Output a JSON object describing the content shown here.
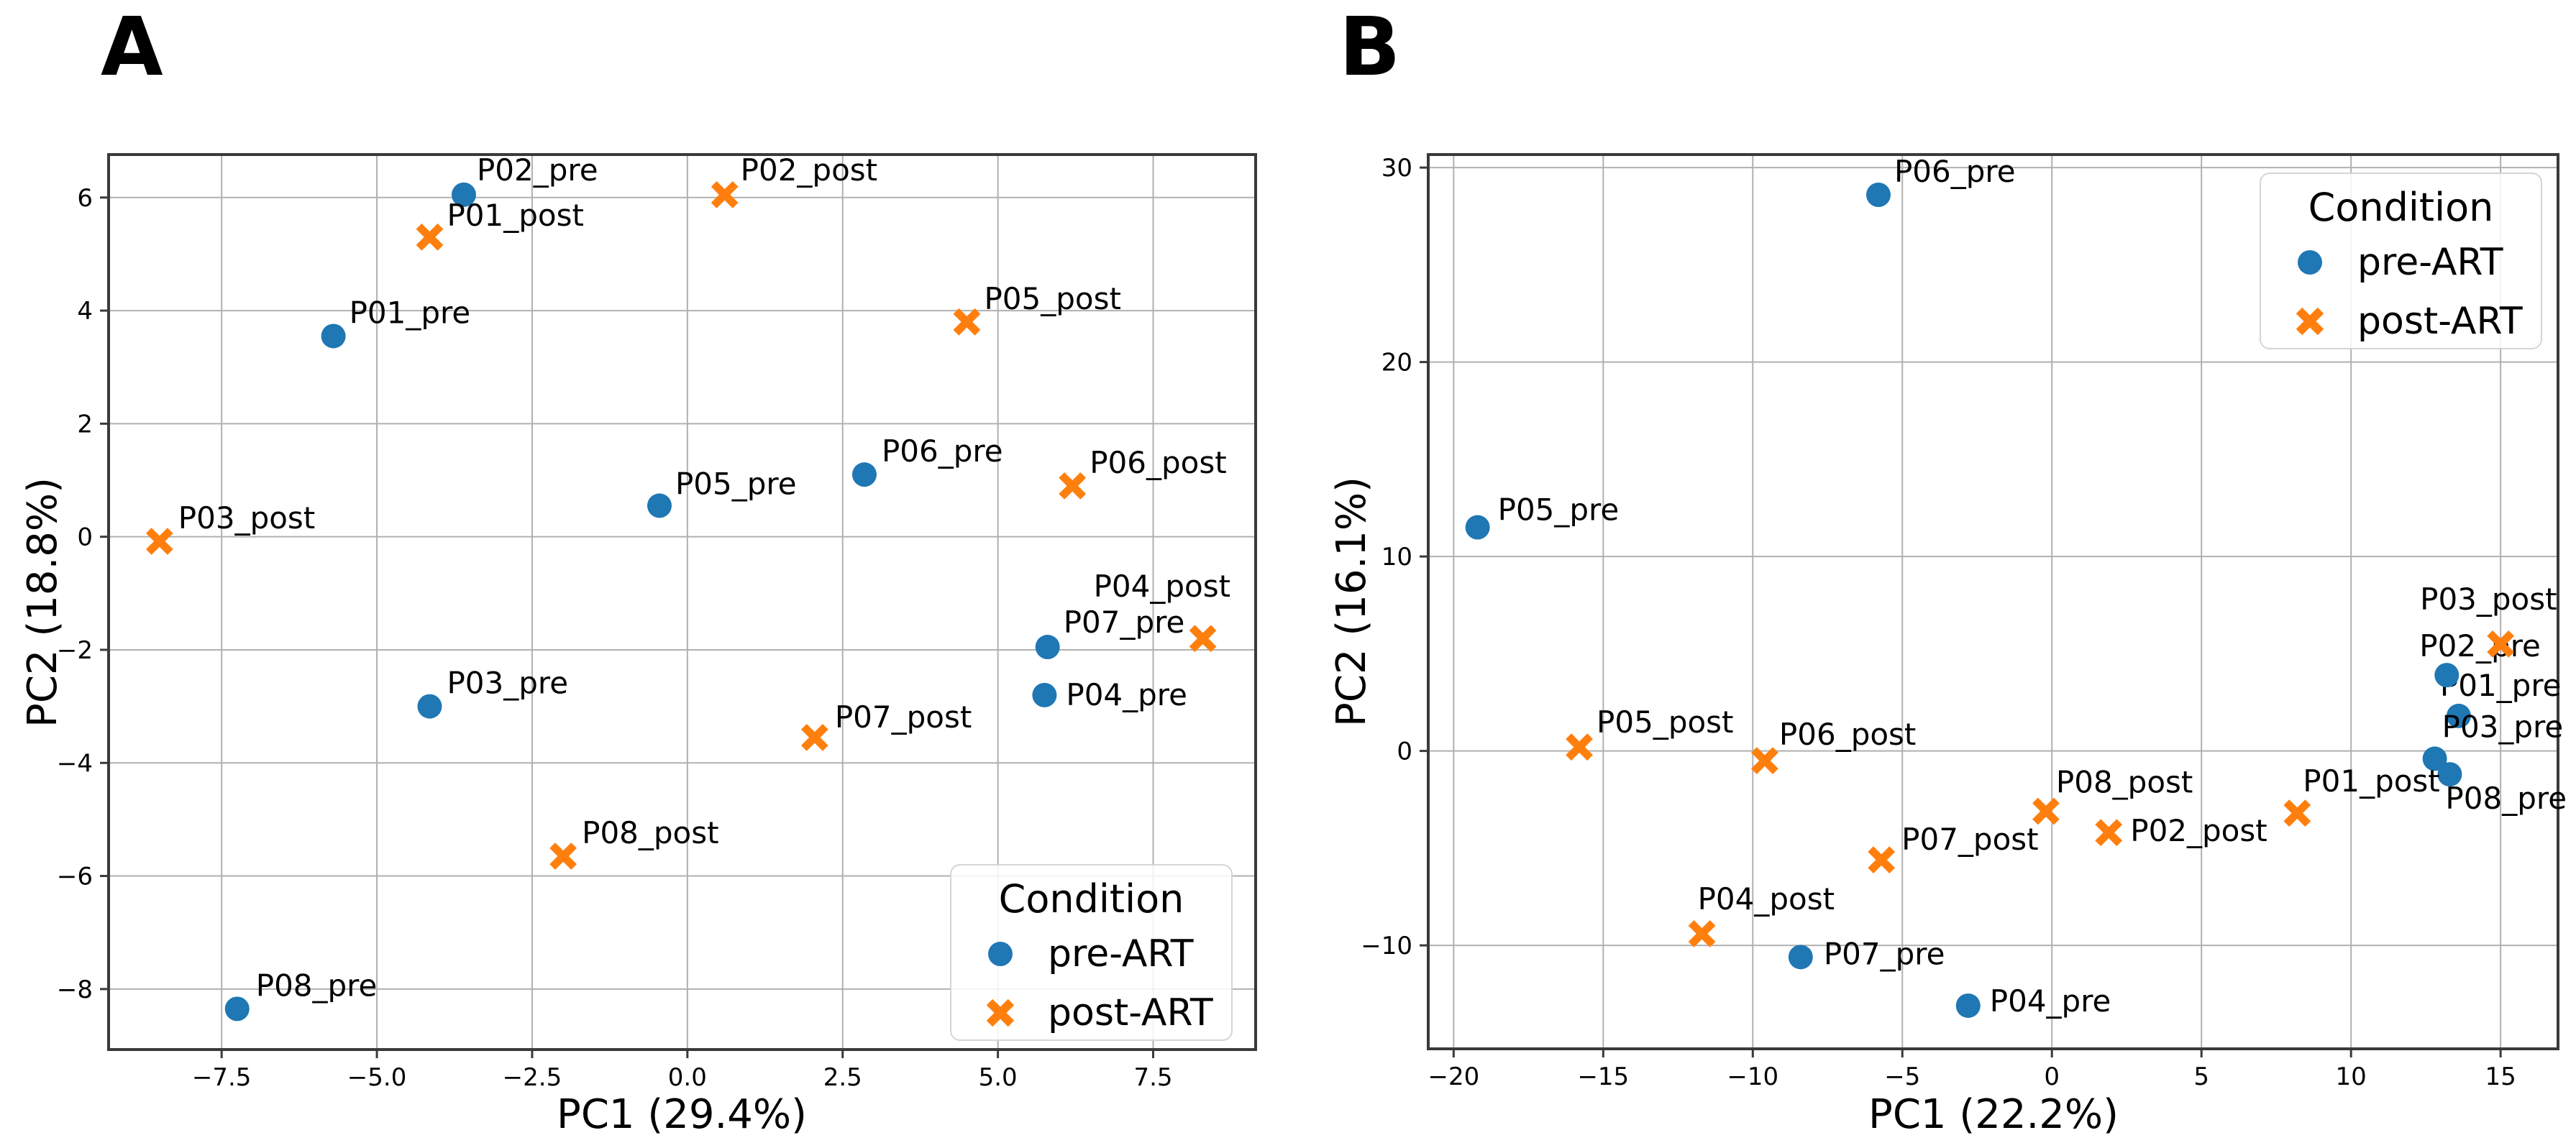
{
  "chart_data": [
    {
      "type": "scatter",
      "panel_letter": "A",
      "xlabel": "PC1 (29.4%)",
      "ylabel": "PC2 (18.8%)",
      "xlim": [
        -9.32,
        9.15
      ],
      "ylim": [
        -9.07,
        6.76
      ],
      "xticks": {
        "values": [
          -7.5,
          -5.0,
          -2.5,
          0.0,
          2.5,
          5.0,
          7.5
        ],
        "labels": [
          "−7.5",
          "−5.0",
          "−2.5",
          "0.0",
          "2.5",
          "5.0",
          "7.5"
        ]
      },
      "yticks": {
        "values": [
          6,
          4,
          2,
          0,
          -2,
          -4,
          -6,
          -8
        ],
        "labels": [
          "6",
          "4",
          "2",
          "0",
          "−2",
          "−4",
          "−6",
          "−8"
        ]
      },
      "grid": true,
      "legend": {
        "title": "Condition",
        "position": "lower right",
        "items": [
          {
            "label": "pre-ART",
            "marker": "circle",
            "color": "#1f77b4"
          },
          {
            "label": "post-ART",
            "marker": "x",
            "color": "#ff7f0e"
          }
        ]
      },
      "series": [
        {
          "name": "pre-ART",
          "marker": "circle",
          "color": "#1f77b4",
          "points": [
            {
              "label": "P01_pre",
              "x": -5.7,
              "y": 3.55,
              "label_dx": 22,
              "label_dy": -18
            },
            {
              "label": "P02_pre",
              "x": -3.6,
              "y": 6.05,
              "label_dx": 18,
              "label_dy": -20
            },
            {
              "label": "P03_pre",
              "x": -4.15,
              "y": -3.0,
              "label_dx": 24,
              "label_dy": -18
            },
            {
              "label": "P04_pre",
              "x": 5.75,
              "y": -2.8,
              "label_dx": 30,
              "label_dy": 14
            },
            {
              "label": "P05_pre",
              "x": -0.45,
              "y": 0.55,
              "label_dx": 22,
              "label_dy": -16
            },
            {
              "label": "P06_pre",
              "x": 2.85,
              "y": 1.1,
              "label_dx": 24,
              "label_dy": -18
            },
            {
              "label": "P07_pre",
              "x": 5.8,
              "y": -1.95,
              "label_dx": 22,
              "label_dy": -20
            },
            {
              "label": "P08_pre",
              "x": -7.25,
              "y": -8.35,
              "label_dx": 26,
              "label_dy": -18
            }
          ]
        },
        {
          "name": "post-ART",
          "marker": "x",
          "color": "#ff7f0e",
          "points": [
            {
              "label": "P01_post",
              "x": -4.15,
              "y": 5.3,
              "label_dx": 24,
              "label_dy": -16
            },
            {
              "label": "P02_post",
              "x": 0.6,
              "y": 6.05,
              "label_dx": 22,
              "label_dy": -20
            },
            {
              "label": "P03_post",
              "x": -8.5,
              "y": -0.08,
              "label_dx": 26,
              "label_dy": -18
            },
            {
              "label": "P04_post",
              "x": 8.3,
              "y": -1.8,
              "label_dx": -152,
              "label_dy": -58
            },
            {
              "label": "P05_post",
              "x": 4.5,
              "y": 3.8,
              "label_dx": 24,
              "label_dy": -18
            },
            {
              "label": "P06_post",
              "x": 6.2,
              "y": 0.9,
              "label_dx": 24,
              "label_dy": -18
            },
            {
              "label": "P07_post",
              "x": 2.05,
              "y": -3.55,
              "label_dx": 28,
              "label_dy": -14
            },
            {
              "label": "P08_post",
              "x": -2.0,
              "y": -5.65,
              "label_dx": 26,
              "label_dy": -18
            }
          ]
        }
      ]
    },
    {
      "type": "scatter",
      "panel_letter": "B",
      "xlabel": "PC1 (22.2%)",
      "ylabel": "PC2 (16.1%)",
      "xlim": [
        -20.85,
        16.92
      ],
      "ylim": [
        -15.32,
        30.67
      ],
      "xticks": {
        "values": [
          -20,
          -15,
          -10,
          -5,
          0,
          5,
          10,
          15
        ],
        "labels": [
          "−20",
          "−15",
          "−10",
          "−5",
          "0",
          "5",
          "10",
          "15"
        ]
      },
      "yticks": {
        "values": [
          -10,
          0,
          10,
          20,
          30
        ],
        "labels": [
          "−10",
          "0",
          "10",
          "20",
          "30"
        ]
      },
      "grid": true,
      "legend": {
        "title": "Condition",
        "position": "upper right",
        "items": [
          {
            "label": "pre-ART",
            "marker": "circle",
            "color": "#1f77b4"
          },
          {
            "label": "post-ART",
            "marker": "x",
            "color": "#ff7f0e"
          }
        ]
      },
      "series": [
        {
          "name": "pre-ART",
          "marker": "circle",
          "color": "#1f77b4",
          "points": [
            {
              "label": "P01_pre",
              "x": 13.6,
              "y": 1.8,
              "label_dx": -26,
              "label_dy": -28
            },
            {
              "label": "P02_pre",
              "x": 13.2,
              "y": 3.9,
              "label_dx": -38,
              "label_dy": -26
            },
            {
              "label": "P03_pre",
              "x": 12.8,
              "y": -0.4,
              "label_dx": 10,
              "label_dy": -30
            },
            {
              "label": "P04_pre",
              "x": -2.8,
              "y": -13.1,
              "label_dx": 30,
              "label_dy": 8
            },
            {
              "label": "P05_pre",
              "x": -19.2,
              "y": 11.5,
              "label_dx": 28,
              "label_dy": -10
            },
            {
              "label": "P06_pre",
              "x": -5.8,
              "y": 28.6,
              "label_dx": 22,
              "label_dy": -18
            },
            {
              "label": "P07_pre",
              "x": -8.4,
              "y": -10.6,
              "label_dx": 32,
              "label_dy": 10
            },
            {
              "label": "P08_pre",
              "x": 13.3,
              "y": -1.2,
              "label_dx": -6,
              "label_dy": 48
            }
          ]
        },
        {
          "name": "post-ART",
          "marker": "x",
          "color": "#ff7f0e",
          "points": [
            {
              "label": "P01_post",
              "x": 8.2,
              "y": -3.2,
              "label_dx": 8,
              "label_dy": -30
            },
            {
              "label": "P02_post",
              "x": 1.9,
              "y": -4.2,
              "label_dx": 30,
              "label_dy": 12
            },
            {
              "label": "P03_post",
              "x": 15.0,
              "y": 5.5,
              "label_dx": -112,
              "label_dy": -48
            },
            {
              "label": "P04_post",
              "x": -11.7,
              "y": -9.4,
              "label_dx": -6,
              "label_dy": -34
            },
            {
              "label": "P05_post",
              "x": -15.8,
              "y": 0.2,
              "label_dx": 24,
              "label_dy": -20
            },
            {
              "label": "P06_post",
              "x": -9.6,
              "y": -0.5,
              "label_dx": 20,
              "label_dy": -22
            },
            {
              "label": "P07_post",
              "x": -5.7,
              "y": -5.6,
              "label_dx": 28,
              "label_dy": -14
            },
            {
              "label": "P08_post",
              "x": -0.2,
              "y": -3.1,
              "label_dx": 14,
              "label_dy": -26
            }
          ]
        }
      ]
    }
  ]
}
